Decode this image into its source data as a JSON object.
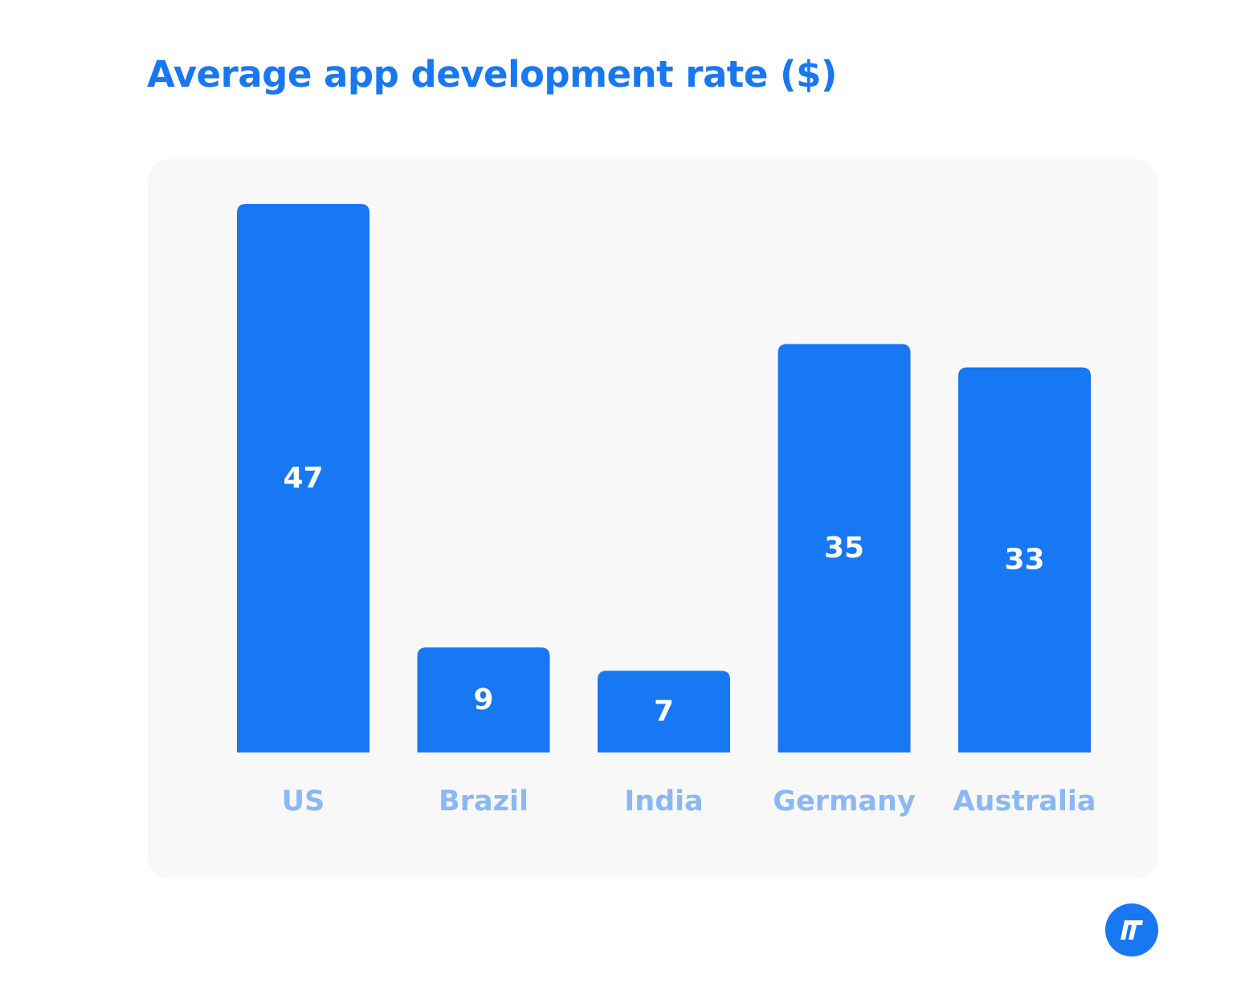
{
  "colors": {
    "accent": "#1877f2",
    "bar": "#1877f2",
    "bar_label": "#ffffff",
    "category_label": "#8ab8f6",
    "panel_background": "#f8f8f8"
  },
  "logo": {
    "icon": "brand-logo-icon"
  },
  "chart_data": {
    "type": "bar",
    "title": "Average app development rate ($)",
    "xlabel": "",
    "ylabel": "",
    "categories": [
      "US",
      "Brazil",
      "India",
      "Germany",
      "Australia"
    ],
    "values": [
      47,
      9,
      7,
      35,
      33
    ],
    "value_labels": [
      "47",
      "9",
      "7",
      "35",
      "33"
    ],
    "ylim": [
      0,
      47
    ],
    "grid": false,
    "legend": "none",
    "data_labels": "inside-bar"
  }
}
